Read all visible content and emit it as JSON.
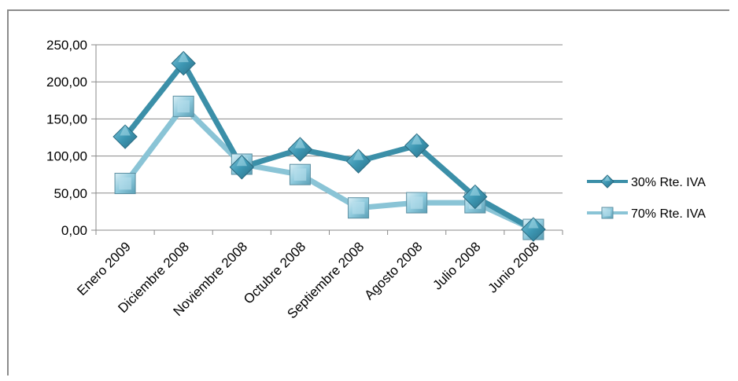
{
  "chart_data": {
    "type": "line",
    "categories": [
      "Enero 2009",
      "Diciembre 2008",
      "Noviembre 2008",
      "Octubre 2008",
      "Septiembre 2008",
      "Agosto 2008",
      "Julio 2008",
      "Junio 2008"
    ],
    "series": [
      {
        "name": "30% Rte. IVA",
        "values": [
          126,
          225,
          85,
          109,
          93,
          114,
          45,
          1
        ],
        "color": "#3b8fa8",
        "marker": "diamond"
      },
      {
        "name": "70% Rte. IVA",
        "values": [
          63,
          167,
          89,
          75,
          30,
          37,
          37,
          1
        ],
        "color": "#8ac4d6",
        "marker": "square"
      }
    ],
    "yticks": [
      "0,00",
      "50,00",
      "100,00",
      "150,00",
      "200,00",
      "250,00"
    ],
    "ylim": [
      0,
      250
    ],
    "grid": true,
    "legend_position": "right",
    "title": "",
    "xlabel": "",
    "ylabel": ""
  }
}
